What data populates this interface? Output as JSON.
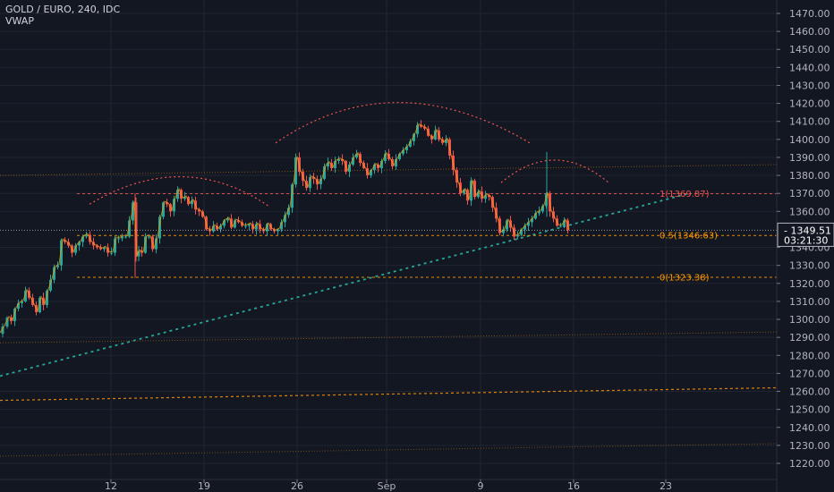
{
  "legend": {
    "symbol_line": "GOLD / EURO, 240, IDC",
    "indicator": "VWAP"
  },
  "colors": {
    "background": "#131722",
    "grid": "#1f2430",
    "axis_text": "#b2b5be",
    "up": "#26a69a",
    "down": "#ef5350",
    "vwap": "#ff9800",
    "trendline": "#26a69a",
    "arc": "#ef5350",
    "fib_top": "#ef5350",
    "fib_mid": "#ff9800",
    "fib_bottom": "#ff9800",
    "price_label_bg": "#131722",
    "price_label_text": "#ffffff"
  },
  "price_axis": {
    "ticks": [
      "1470.00",
      "1460.00",
      "1450.00",
      "1440.00",
      "1430.00",
      "1420.00",
      "1410.00",
      "1400.00",
      "1390.00",
      "1380.00",
      "1370.00",
      "1360.00",
      "1340.00",
      "1330.00",
      "1320.00",
      "1310.00",
      "1300.00",
      "1290.00",
      "1280.00",
      "1270.00",
      "1260.00",
      "1250.00",
      "1240.00",
      "1230.00",
      "1220.00"
    ],
    "current_price": "1349.51",
    "countdown": "03:21:30"
  },
  "time_axis": {
    "ticks": [
      "12",
      "19",
      "26",
      "Sep",
      "9",
      "16",
      "23"
    ]
  },
  "fib_labels": {
    "top": "1(1369.87)",
    "mid": "0.5(1346.63)",
    "bottom": "0(1323.38)"
  },
  "chart_data": {
    "type": "candlestick",
    "title": "GOLD / EURO, 240, IDC",
    "ylim": [
      1215,
      1475
    ],
    "x_ticks": [
      "12",
      "19",
      "26",
      "Sep",
      "9",
      "16",
      "23"
    ],
    "y_ticks": [
      1470,
      1460,
      1450,
      1440,
      1430,
      1420,
      1410,
      1400,
      1390,
      1380,
      1370,
      1360,
      1340,
      1330,
      1320,
      1310,
      1300,
      1290,
      1280,
      1270,
      1260,
      1250,
      1240,
      1230,
      1220
    ],
    "last_price": 1349.51,
    "fib_levels": [
      {
        "ratio": 1,
        "price": 1369.87
      },
      {
        "ratio": 0.5,
        "price": 1346.63
      },
      {
        "ratio": 0,
        "price": 1323.38
      }
    ],
    "close_path": [
      [
        0,
        1292
      ],
      [
        5,
        1296
      ],
      [
        10,
        1301
      ],
      [
        14,
        1299
      ],
      [
        18,
        1306
      ],
      [
        22,
        1309
      ],
      [
        26,
        1310
      ],
      [
        30,
        1316
      ],
      [
        34,
        1312
      ],
      [
        38,
        1308
      ],
      [
        42,
        1304
      ],
      [
        46,
        1312
      ],
      [
        50,
        1308
      ],
      [
        54,
        1316
      ],
      [
        58,
        1322
      ],
      [
        62,
        1329
      ],
      [
        66,
        1330
      ],
      [
        70,
        1344
      ],
      [
        74,
        1343
      ],
      [
        78,
        1341
      ],
      [
        82,
        1337
      ],
      [
        86,
        1341
      ],
      [
        90,
        1343
      ],
      [
        94,
        1346
      ],
      [
        98,
        1347
      ],
      [
        102,
        1343
      ],
      [
        106,
        1341
      ],
      [
        110,
        1340
      ],
      [
        114,
        1339
      ],
      [
        118,
        1340
      ],
      [
        122,
        1337
      ],
      [
        126,
        1337
      ],
      [
        130,
        1345
      ],
      [
        134,
        1345
      ],
      [
        138,
        1346
      ],
      [
        142,
        1346
      ],
      [
        146,
        1355
      ],
      [
        150,
        1365
      ],
      [
        153,
        1335
      ],
      [
        156,
        1338
      ],
      [
        160,
        1337
      ],
      [
        164,
        1346
      ],
      [
        168,
        1346
      ],
      [
        172,
        1339
      ],
      [
        176,
        1345
      ],
      [
        180,
        1357
      ],
      [
        184,
        1365
      ],
      [
        188,
        1364
      ],
      [
        192,
        1360
      ],
      [
        196,
        1367
      ],
      [
        200,
        1372
      ],
      [
        204,
        1367
      ],
      [
        208,
        1368
      ],
      [
        212,
        1364
      ],
      [
        216,
        1366
      ],
      [
        220,
        1361
      ],
      [
        224,
        1360
      ],
      [
        228,
        1357
      ],
      [
        232,
        1350
      ],
      [
        236,
        1349
      ],
      [
        240,
        1352
      ],
      [
        244,
        1350
      ],
      [
        248,
        1352
      ],
      [
        252,
        1355
      ],
      [
        256,
        1356
      ],
      [
        260,
        1351
      ],
      [
        264,
        1355
      ],
      [
        268,
        1354
      ],
      [
        272,
        1352
      ],
      [
        276,
        1352
      ],
      [
        280,
        1353
      ],
      [
        284,
        1350
      ],
      [
        288,
        1353
      ],
      [
        292,
        1350
      ],
      [
        296,
        1349
      ],
      [
        300,
        1353
      ],
      [
        304,
        1350
      ],
      [
        308,
        1349
      ],
      [
        312,
        1350
      ],
      [
        316,
        1354
      ],
      [
        320,
        1358
      ],
      [
        324,
        1362
      ],
      [
        328,
        1375
      ],
      [
        332,
        1390
      ],
      [
        336,
        1382
      ],
      [
        340,
        1377
      ],
      [
        344,
        1373
      ],
      [
        348,
        1379
      ],
      [
        352,
        1378
      ],
      [
        356,
        1375
      ],
      [
        360,
        1378
      ],
      [
        364,
        1385
      ],
      [
        368,
        1387
      ],
      [
        372,
        1384
      ],
      [
        376,
        1388
      ],
      [
        380,
        1389
      ],
      [
        384,
        1388
      ],
      [
        388,
        1382
      ],
      [
        392,
        1386
      ],
      [
        396,
        1390
      ],
      [
        400,
        1392
      ],
      [
        404,
        1387
      ],
      [
        408,
        1384
      ],
      [
        412,
        1380
      ],
      [
        416,
        1383
      ],
      [
        420,
        1386
      ],
      [
        424,
        1384
      ],
      [
        428,
        1388
      ],
      [
        432,
        1392
      ],
      [
        436,
        1389
      ],
      [
        440,
        1385
      ],
      [
        444,
        1389
      ],
      [
        448,
        1392
      ],
      [
        452,
        1394
      ],
      [
        456,
        1396
      ],
      [
        460,
        1399
      ],
      [
        464,
        1403
      ],
      [
        468,
        1408
      ],
      [
        472,
        1407
      ],
      [
        476,
        1406
      ],
      [
        480,
        1402
      ],
      [
        484,
        1400
      ],
      [
        488,
        1405
      ],
      [
        492,
        1400
      ],
      [
        496,
        1398
      ],
      [
        500,
        1400
      ],
      [
        504,
        1391
      ],
      [
        508,
        1383
      ],
      [
        512,
        1376
      ],
      [
        516,
        1370
      ],
      [
        520,
        1372
      ],
      [
        524,
        1366
      ],
      [
        528,
        1377
      ],
      [
        532,
        1368
      ],
      [
        536,
        1371
      ],
      [
        540,
        1367
      ],
      [
        544,
        1369
      ],
      [
        548,
        1368
      ],
      [
        552,
        1362
      ],
      [
        556,
        1356
      ],
      [
        560,
        1348
      ],
      [
        564,
        1350
      ],
      [
        568,
        1355
      ],
      [
        572,
        1351
      ],
      [
        576,
        1346
      ],
      [
        580,
        1347
      ],
      [
        584,
        1350
      ],
      [
        588,
        1352
      ],
      [
        592,
        1354
      ],
      [
        596,
        1356
      ],
      [
        600,
        1359
      ],
      [
        604,
        1360
      ],
      [
        608,
        1363
      ],
      [
        612,
        1370
      ],
      [
        616,
        1360
      ],
      [
        620,
        1356
      ],
      [
        624,
        1352
      ],
      [
        628,
        1352
      ],
      [
        632,
        1355
      ],
      [
        636,
        1349.51
      ]
    ]
  }
}
